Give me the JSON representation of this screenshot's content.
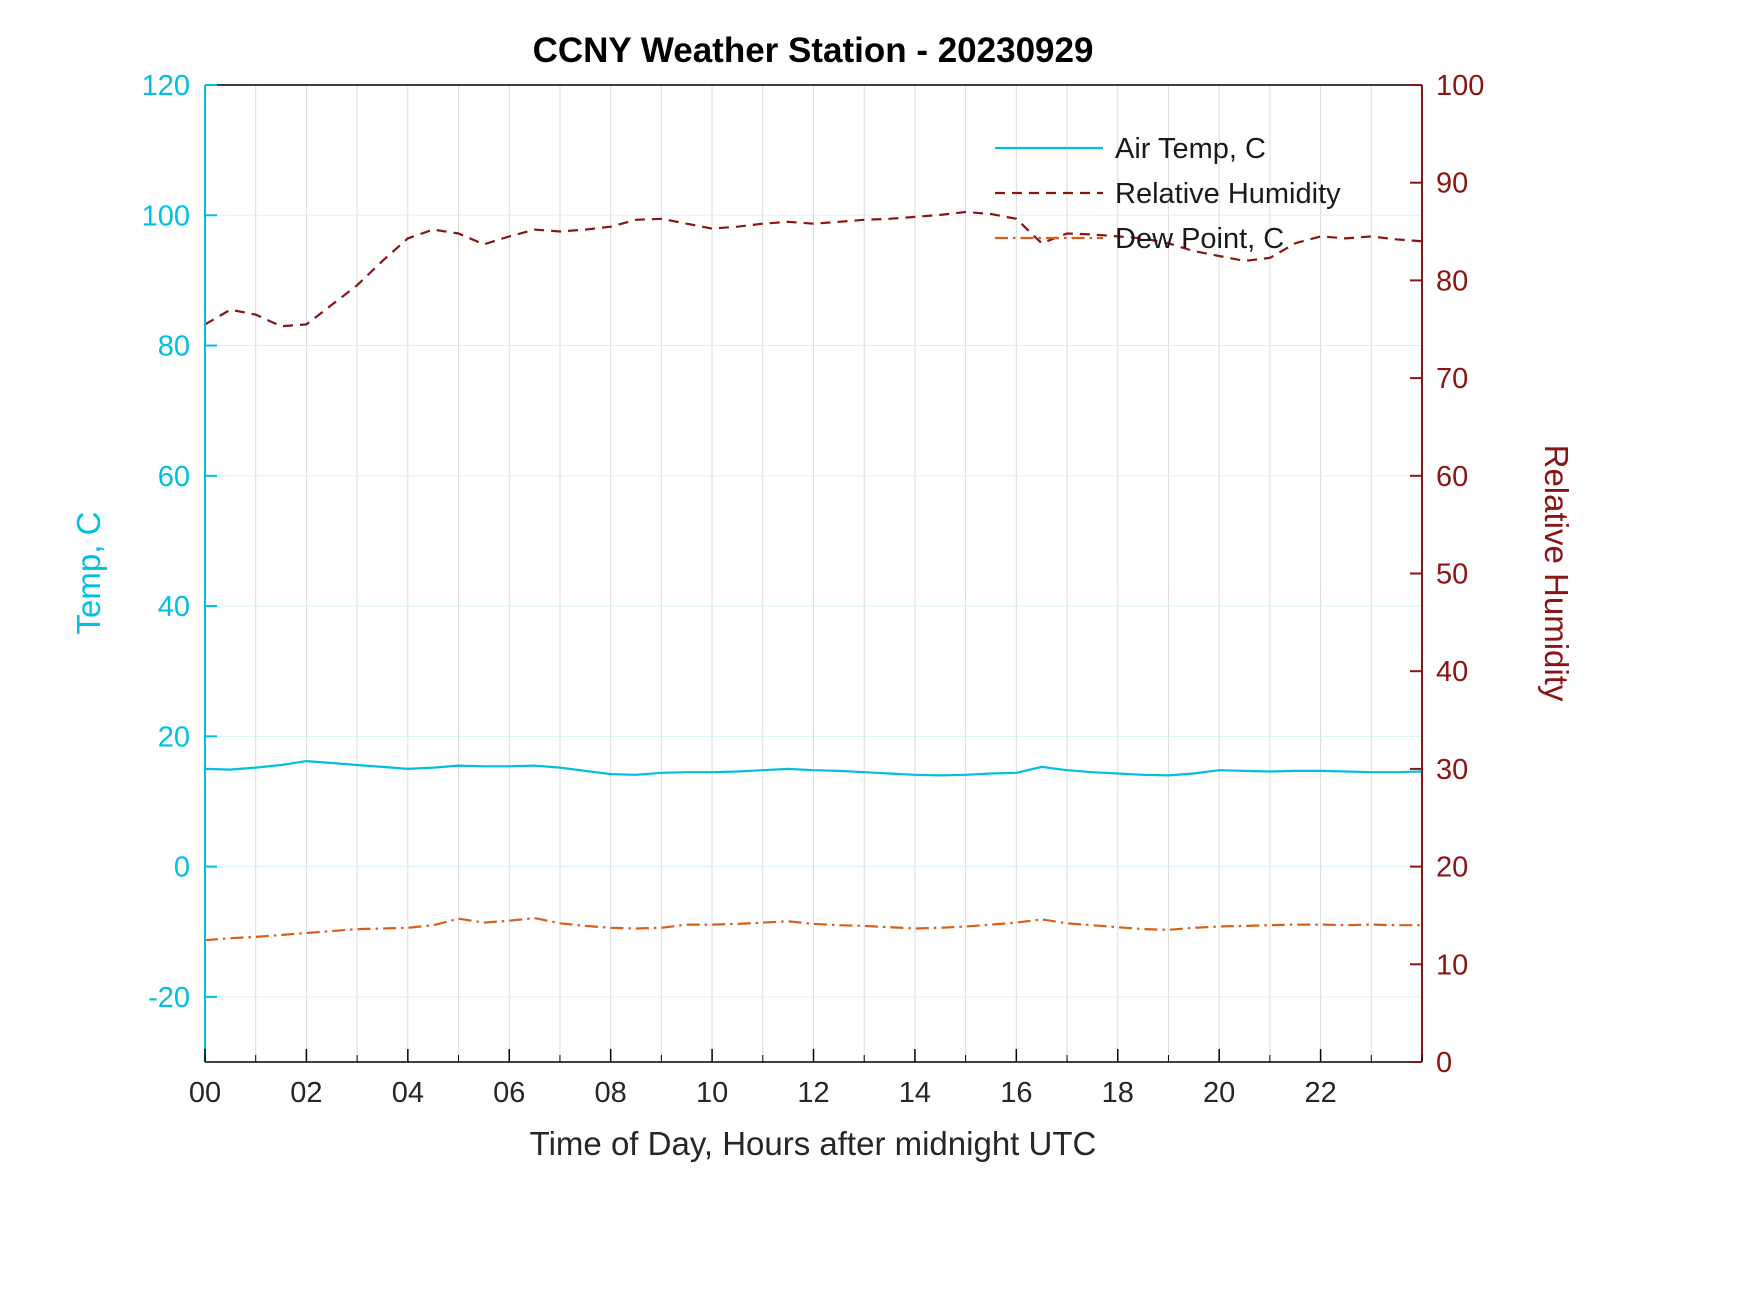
{
  "page": {
    "title": "CCNY Weather Station - 20230929"
  },
  "chart_data": {
    "type": "line",
    "title": "CCNY Weather Station - 20230929",
    "xlabel": "Time of Day, Hours after midnight UTC",
    "ylabel_left": "Temp, C",
    "ylabel_right": "Relative Humidity",
    "xlim": [
      0,
      24
    ],
    "ylim_left": [
      -30,
      120
    ],
    "ylim_right": [
      0,
      100
    ],
    "x_step": 0.5,
    "x_minor_step": 1,
    "x_major_ticks": [
      0,
      2,
      4,
      6,
      8,
      10,
      12,
      14,
      16,
      18,
      20,
      22
    ],
    "x_tick_labels": [
      "00",
      "02",
      "04",
      "06",
      "08",
      "10",
      "12",
      "14",
      "16",
      "18",
      "20",
      "22"
    ],
    "left_ticks": [
      -20,
      0,
      20,
      40,
      60,
      80,
      100,
      120
    ],
    "right_ticks": [
      0,
      10,
      20,
      30,
      40,
      50,
      60,
      70,
      80,
      90,
      100
    ],
    "grid": true,
    "legend_position": "top-right",
    "grid_color_vertical": "#dcdcdc",
    "grid_color_horizontal": "#daf2f7",
    "axis_colors": {
      "left": "#00bfdf",
      "right": "#8b1515",
      "frame": "#000000"
    },
    "series": [
      {
        "name": "Air Temp, C",
        "axis": "left",
        "color": "#00bfdf",
        "style": "solid",
        "values": [
          15.0,
          14.9,
          15.2,
          15.6,
          16.2,
          15.9,
          15.6,
          15.3,
          15.0,
          15.2,
          15.5,
          15.4,
          15.4,
          15.5,
          15.2,
          14.7,
          14.2,
          14.1,
          14.4,
          14.5,
          14.5,
          14.6,
          14.8,
          15.0,
          14.8,
          14.7,
          14.5,
          14.3,
          14.1,
          14.0,
          14.1,
          14.3,
          14.4,
          15.3,
          14.8,
          14.5,
          14.3,
          14.1,
          14.0,
          14.3,
          14.8,
          14.7,
          14.6,
          14.7,
          14.7,
          14.6,
          14.5,
          14.5,
          14.6
        ]
      },
      {
        "name": "Relative Humidity",
        "axis": "right",
        "color": "#8b1515",
        "style": "dashed",
        "values": [
          75.5,
          77.0,
          76.5,
          75.3,
          75.5,
          77.5,
          79.5,
          82.0,
          84.3,
          85.2,
          84.8,
          83.7,
          84.5,
          85.2,
          85.0,
          85.2,
          85.5,
          86.2,
          86.3,
          85.8,
          85.3,
          85.5,
          85.8,
          86.0,
          85.8,
          86.0,
          86.2,
          86.3,
          86.5,
          86.7,
          87.0,
          86.8,
          86.3,
          83.8,
          84.8,
          84.7,
          84.5,
          84.3,
          83.8,
          83.0,
          82.5,
          82.0,
          82.3,
          83.8,
          84.5,
          84.3,
          84.5,
          84.2,
          84.0
        ]
      },
      {
        "name": "Dew Point, C",
        "axis": "left",
        "color": "#d95f19",
        "style": "dashdot",
        "values": [
          -11.3,
          -11.0,
          -10.8,
          -10.5,
          -10.2,
          -9.9,
          -9.6,
          -9.5,
          -9.4,
          -9.0,
          -8.0,
          -8.6,
          -8.3,
          -7.9,
          -8.7,
          -9.1,
          -9.4,
          -9.5,
          -9.4,
          -8.9,
          -8.9,
          -8.8,
          -8.6,
          -8.4,
          -8.8,
          -9.0,
          -9.1,
          -9.3,
          -9.5,
          -9.4,
          -9.2,
          -8.9,
          -8.6,
          -8.1,
          -8.7,
          -9.0,
          -9.3,
          -9.6,
          -9.7,
          -9.4,
          -9.2,
          -9.1,
          -9.0,
          -8.9,
          -8.9,
          -9.0,
          -8.9,
          -9.0,
          -9.0
        ]
      }
    ]
  }
}
